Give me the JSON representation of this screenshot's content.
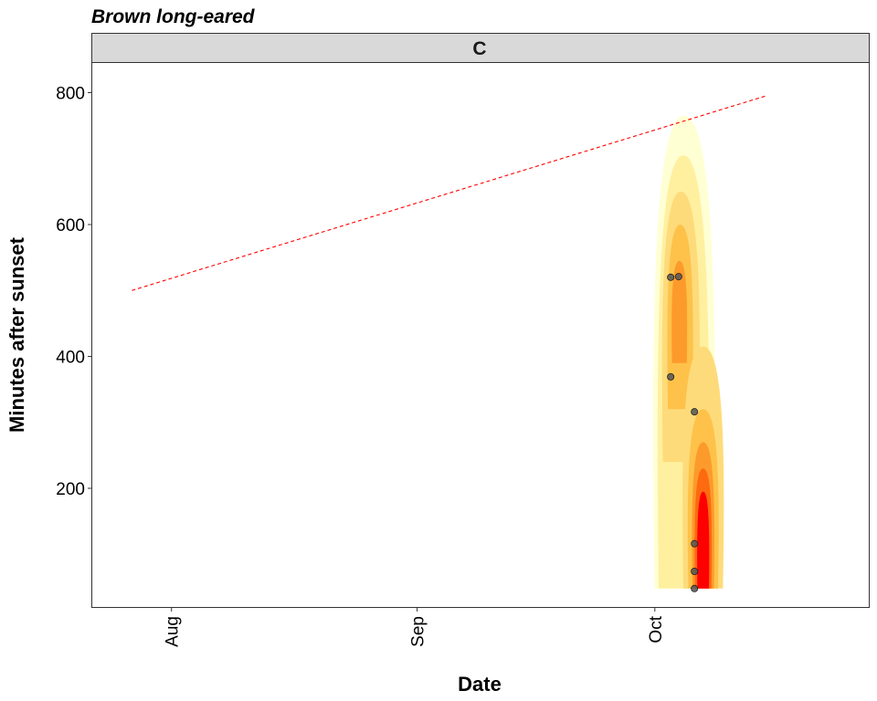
{
  "chart_data": {
    "type": "scatter",
    "title": "Brown long-eared",
    "facet_label": "C",
    "xlabel": "Date",
    "ylabel": "Minutes after sunset",
    "x_ticks": [
      {
        "label": "Aug",
        "date": "2021-08-01"
      },
      {
        "label": "Sep",
        "date": "2021-09-01"
      },
      {
        "label": "Oct",
        "date": "2021-10-01"
      }
    ],
    "y_ticks": [
      200,
      400,
      600,
      800
    ],
    "xlim": [
      "2021-07-22",
      "2021-10-28"
    ],
    "ylim": [
      20,
      845
    ],
    "grid": false,
    "points": [
      {
        "x": "2021-10-03",
        "y": 520
      },
      {
        "x": "2021-10-04",
        "y": 521
      },
      {
        "x": "2021-10-03",
        "y": 369
      },
      {
        "x": "2021-10-06",
        "y": 316
      },
      {
        "x": "2021-10-06",
        "y": 116
      },
      {
        "x": "2021-10-06",
        "y": 74
      },
      {
        "x": "2021-10-06",
        "y": 48
      }
    ],
    "night_end_line": {
      "style": "dashed",
      "color": "#ff0000",
      "x": [
        "2021-07-27",
        "2021-10-15"
      ],
      "y": [
        500,
        795
      ]
    },
    "density_fill_colors": [
      "#ffffd4",
      "#fff0a0",
      "#fedb7a",
      "#fec24a",
      "#fd9a2c",
      "#fd6a10",
      "#ff0000"
    ]
  }
}
